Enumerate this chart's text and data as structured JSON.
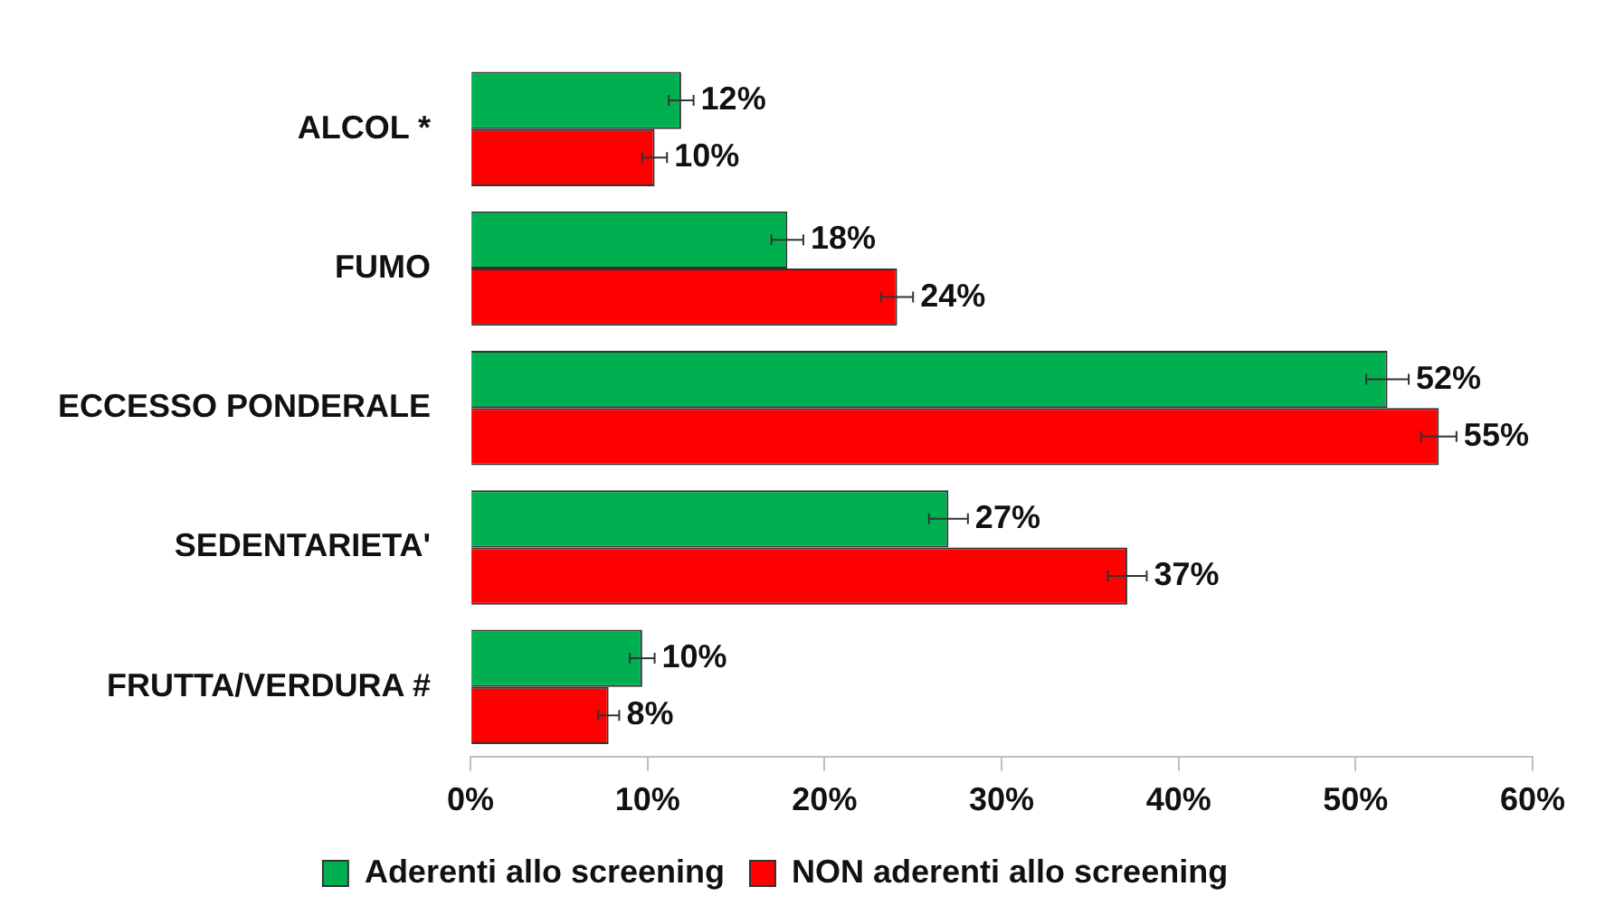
{
  "chart_data": {
    "type": "bar",
    "orientation": "horizontal",
    "categories": [
      "ALCOL *",
      "FUMO",
      "ECCESSO PONDERALE",
      "SEDENTARIETA'",
      "FRUTTA/VERDURA #"
    ],
    "series": [
      {
        "name": "Aderenti allo screening",
        "color": "#00b050",
        "values": [
          11.9,
          17.9,
          51.8,
          27.0,
          9.7
        ],
        "errors": [
          0.7,
          0.9,
          1.2,
          1.1,
          0.7
        ],
        "value_labels": [
          "12%",
          "18%",
          "52%",
          "27%",
          "10%"
        ]
      },
      {
        "name": "NON aderenti allo screening",
        "color": "#ff0000",
        "values": [
          10.4,
          24.1,
          54.7,
          37.1,
          7.8
        ],
        "errors": [
          0.7,
          0.9,
          1.0,
          1.1,
          0.6
        ],
        "value_labels": [
          "10%",
          "24%",
          "55%",
          "37%",
          "8%"
        ]
      }
    ],
    "xlim": [
      0,
      60
    ],
    "xticks": [
      {
        "value": 0,
        "label": "0%"
      },
      {
        "value": 10,
        "label": "10%"
      },
      {
        "value": 20,
        "label": "20%"
      },
      {
        "value": 30,
        "label": "30%"
      },
      {
        "value": 40,
        "label": "40%"
      },
      {
        "value": 50,
        "label": "50%"
      },
      {
        "value": 60,
        "label": "60%"
      }
    ],
    "grid": false,
    "legend": "bottom"
  }
}
